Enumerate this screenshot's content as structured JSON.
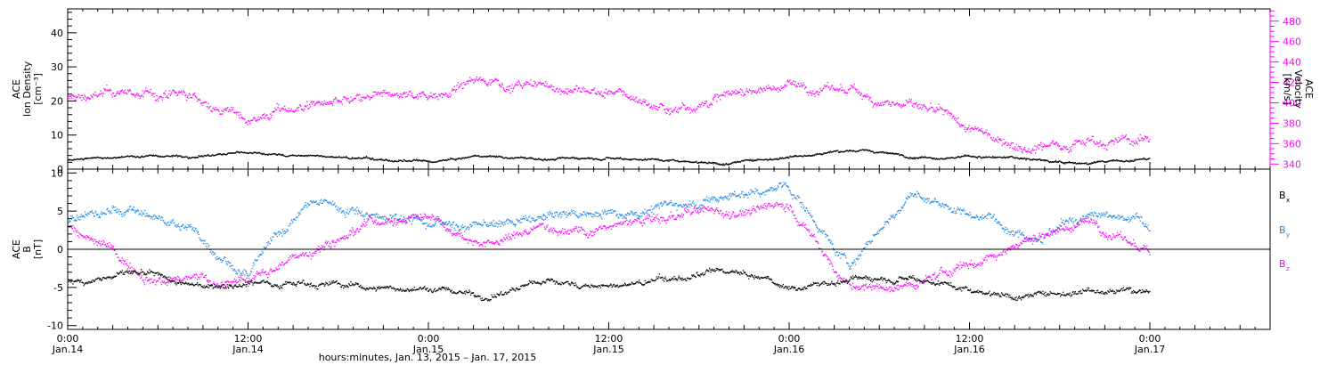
{
  "chart_data": [
    {
      "type": "scatter",
      "panel": "ion-density-velocity",
      "ylabel_lines": [
        "ACE",
        "Ion Density",
        "[cm⁻³]"
      ],
      "ylim": [
        0,
        47
      ],
      "yticks": [
        0,
        10,
        20,
        30,
        40
      ],
      "y2label_lines": [
        "ACE",
        "Velocity",
        "[km/s]"
      ],
      "y2lim": [
        335,
        492
      ],
      "y2ticks": [
        340,
        360,
        380,
        400,
        420,
        440,
        460,
        480
      ],
      "grid": false,
      "series": [
        {
          "axis": "left",
          "color": "#000000",
          "x_hours": [
            0,
            4,
            8,
            12,
            16,
            20,
            24,
            28,
            32,
            36,
            40,
            44,
            48,
            52,
            56,
            60,
            64,
            68,
            72
          ],
          "values": [
            3,
            4,
            4,
            5,
            4,
            3,
            2,
            4,
            3,
            4,
            3,
            2,
            4,
            6,
            4,
            4,
            3,
            2,
            3
          ]
        },
        {
          "axis": "right",
          "color": "#ff00ff",
          "x_hours": [
            0,
            4,
            8,
            12,
            16,
            20,
            24,
            28,
            32,
            36,
            40,
            44,
            48,
            52,
            56,
            60,
            64,
            68,
            72
          ],
          "values": [
            405,
            410,
            405,
            385,
            400,
            400,
            410,
            425,
            415,
            410,
            395,
            410,
            420,
            410,
            400,
            370,
            360,
            368,
            362
          ]
        }
      ]
    },
    {
      "type": "scatter",
      "panel": "magnetic-field",
      "ylabel_lines": [
        "ACE",
        "B",
        "[nT]"
      ],
      "ylim": [
        -10.5,
        10.5
      ],
      "yticks": [
        -10,
        -5,
        0,
        5,
        10
      ],
      "grid": false,
      "legend_position": "right",
      "series": [
        {
          "name": "Bx",
          "color": "#000000",
          "x_hours": [
            0,
            4,
            8,
            12,
            16,
            20,
            24,
            28,
            32,
            36,
            40,
            44,
            48,
            52,
            56,
            60,
            64,
            68,
            72
          ],
          "values": [
            -4,
            -3,
            -5,
            -4,
            -4,
            -5,
            -5,
            -6,
            -4,
            -5,
            -4,
            -3,
            -5,
            -4,
            -3,
            -5,
            -6,
            -5,
            -5
          ]
        },
        {
          "name": "By",
          "color": "#1e88e5",
          "x_hours": [
            0,
            4,
            8,
            12,
            16,
            20,
            24,
            28,
            32,
            36,
            40,
            44,
            48,
            52,
            56,
            60,
            64,
            68,
            72
          ],
          "values": [
            4,
            5,
            3,
            -3,
            6,
            5,
            4,
            3,
            4,
            5,
            6,
            7,
            8,
            -2,
            7,
            5,
            3,
            4,
            3
          ]
        },
        {
          "name": "Bz",
          "color": "#ff00ff",
          "x_hours": [
            0,
            4,
            8,
            12,
            16,
            20,
            24,
            28,
            32,
            36,
            40,
            44,
            48,
            52,
            56,
            60,
            64,
            68,
            72
          ],
          "values": [
            3,
            -2,
            -4,
            -4,
            0,
            4,
            5,
            1,
            3,
            3,
            4,
            5,
            6,
            -5,
            -5,
            -2,
            2,
            4,
            -1
          ]
        }
      ]
    }
  ],
  "legend": {
    "bx": {
      "letter": "B",
      "sub": "x"
    },
    "by": {
      "letter": "B",
      "sub": "y"
    },
    "bz": {
      "letter": "B",
      "sub": "z"
    }
  },
  "x_axis": {
    "range_hours": [
      0,
      80
    ],
    "major_ticks": [
      {
        "hours": 0,
        "time": "0:00",
        "date": "Jan.14"
      },
      {
        "hours": 12,
        "time": "12:00",
        "date": "Jan.14"
      },
      {
        "hours": 24,
        "time": "0:00",
        "date": "Jan.15"
      },
      {
        "hours": 36,
        "time": "12:00",
        "date": "Jan.15"
      },
      {
        "hours": 48,
        "time": "0:00",
        "date": "Jan.16"
      },
      {
        "hours": 60,
        "time": "12:00",
        "date": "Jan.16"
      },
      {
        "hours": 72,
        "time": "0:00",
        "date": "Jan.17"
      }
    ],
    "label": "hours:minutes, Jan. 13, 2015 – Jan. 17, 2015"
  },
  "colors": {
    "black": "#000000",
    "magenta": "#ff00ff",
    "blue": "#1e88e5"
  }
}
